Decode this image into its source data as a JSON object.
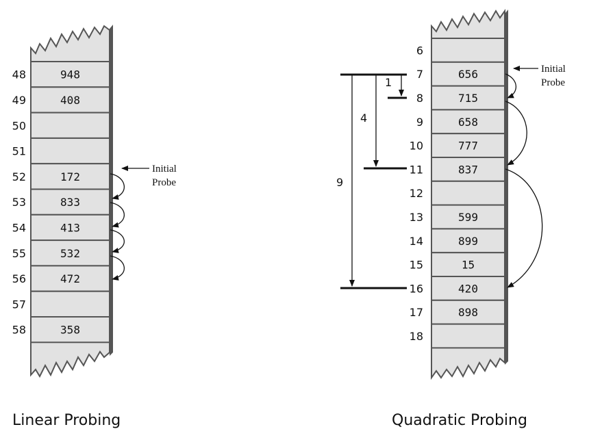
{
  "linear": {
    "caption": "Linear Probing",
    "note_line1": "Initial",
    "note_line2": "Probe",
    "rows": [
      {
        "index": "48",
        "value": "948"
      },
      {
        "index": "49",
        "value": "408"
      },
      {
        "index": "50",
        "value": ""
      },
      {
        "index": "51",
        "value": ""
      },
      {
        "index": "52",
        "value": "172"
      },
      {
        "index": "53",
        "value": "833"
      },
      {
        "index": "54",
        "value": "413"
      },
      {
        "index": "55",
        "value": "532"
      },
      {
        "index": "56",
        "value": "472"
      },
      {
        "index": "57",
        "value": ""
      },
      {
        "index": "58",
        "value": "358"
      }
    ]
  },
  "quadratic": {
    "caption": "Quadratic Probing",
    "note_line1": "Initial",
    "note_line2": "Probe",
    "rows": [
      {
        "index": "6",
        "value": ""
      },
      {
        "index": "7",
        "value": "656"
      },
      {
        "index": "8",
        "value": "715"
      },
      {
        "index": "9",
        "value": "658"
      },
      {
        "index": "10",
        "value": "777"
      },
      {
        "index": "11",
        "value": "837"
      },
      {
        "index": "12",
        "value": ""
      },
      {
        "index": "13",
        "value": "599"
      },
      {
        "index": "14",
        "value": "899"
      },
      {
        "index": "15",
        "value": "15"
      },
      {
        "index": "16",
        "value": "420"
      },
      {
        "index": "17",
        "value": "898"
      },
      {
        "index": "18",
        "value": ""
      }
    ],
    "step_labels": [
      "1",
      "4",
      "9"
    ]
  }
}
